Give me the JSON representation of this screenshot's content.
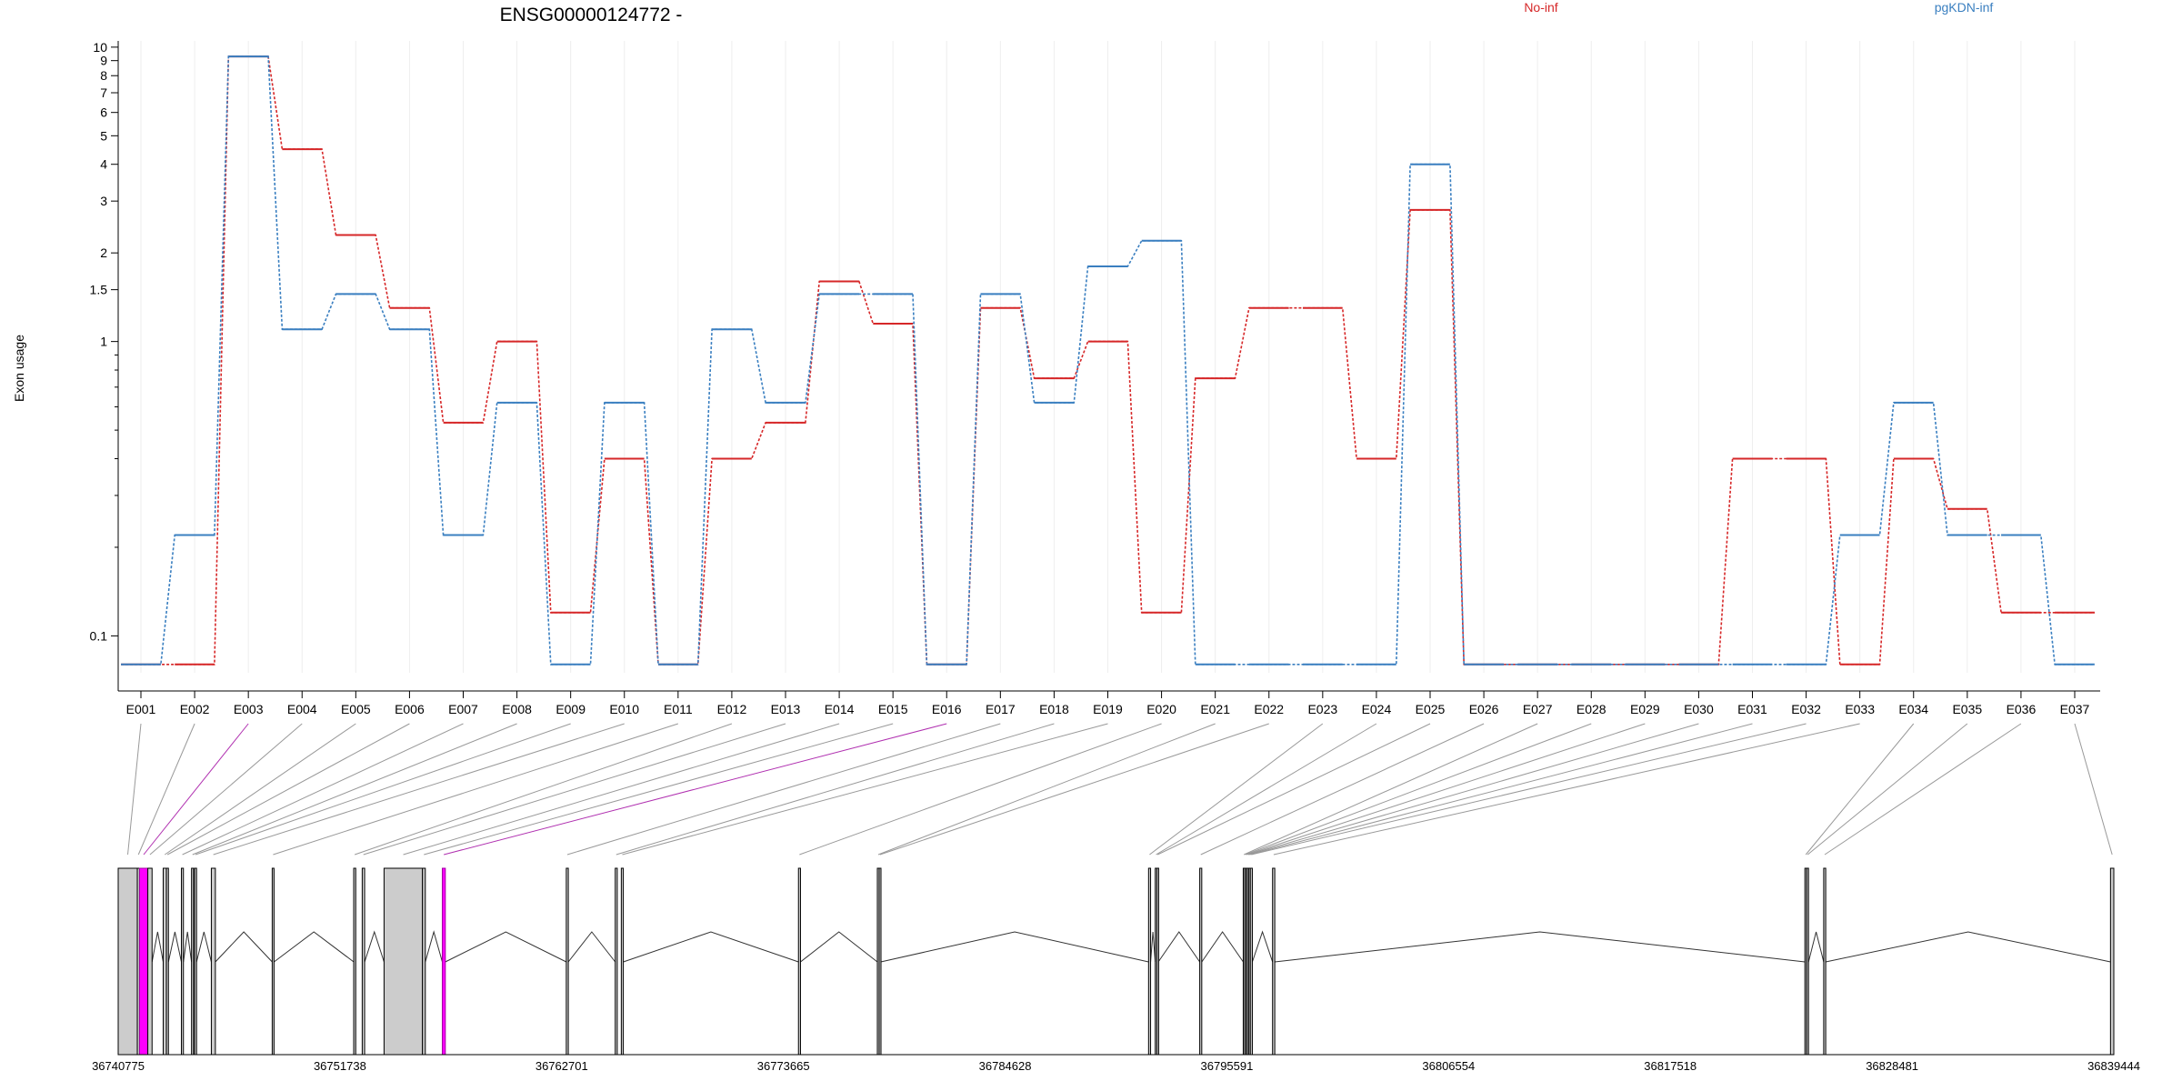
{
  "chart_data": {
    "type": "line",
    "title": "ENSG00000124772 -",
    "ylabel": "Exon usage",
    "xlabel": "",
    "y_scale": "log",
    "ylim": [
      0.065,
      10.5
    ],
    "y_ticks": [
      0.1,
      1,
      1.5,
      2,
      3,
      4,
      5,
      6,
      7,
      8,
      9,
      10
    ],
    "y_minor_ticks": [
      0.2,
      0.3,
      0.4,
      0.5,
      0.6,
      0.7,
      0.8,
      0.9
    ],
    "grid": true,
    "legend_placement": "top",
    "categories": [
      "E001",
      "E002",
      "E003",
      "E004",
      "E005",
      "E006",
      "E007",
      "E008",
      "E009",
      "E010",
      "E011",
      "E012",
      "E013",
      "E014",
      "E015",
      "E016",
      "E017",
      "E018",
      "E019",
      "E020",
      "E021",
      "E022",
      "E023",
      "E024",
      "E025",
      "E026",
      "E027",
      "E028",
      "E029",
      "E030",
      "E031",
      "E032",
      "E033",
      "E034",
      "E035",
      "E036",
      "E037"
    ],
    "series": [
      {
        "name": "No-inf",
        "color": "#d62728",
        "values": [
          0.08,
          0.08,
          9.3,
          4.5,
          2.3,
          1.3,
          0.53,
          1.0,
          0.12,
          0.4,
          0.08,
          0.4,
          0.53,
          1.6,
          1.15,
          0.08,
          1.3,
          0.75,
          1.0,
          0.12,
          0.75,
          1.3,
          1.3,
          0.4,
          2.8,
          0.08,
          0.08,
          0.08,
          0.08,
          0.08,
          0.4,
          0.4,
          0.08,
          0.4,
          0.27,
          0.12,
          0.12
        ]
      },
      {
        "name": "pgKDN-inf",
        "color": "#3a7fc0",
        "values": [
          0.08,
          0.22,
          9.3,
          1.1,
          1.45,
          1.1,
          0.22,
          0.62,
          0.08,
          0.62,
          0.08,
          1.1,
          0.62,
          1.45,
          1.45,
          0.08,
          1.45,
          0.62,
          1.8,
          2.2,
          0.08,
          0.08,
          0.08,
          0.08,
          4.0,
          0.08,
          0.08,
          0.08,
          0.08,
          0.08,
          0.08,
          0.08,
          0.22,
          0.62,
          0.22,
          0.22,
          0.08
        ]
      }
    ],
    "gene_model": {
      "start": 36740775,
      "end": 36839444,
      "axis_labels": [
        "36740775",
        "36751738",
        "36762701",
        "36773665",
        "36784628",
        "36795591",
        "36806554",
        "36817518",
        "36828481",
        "36839444"
      ],
      "axis_values": [
        36740775,
        36751738,
        36762701,
        36773665,
        36784628,
        36795591,
        36806554,
        36817518,
        36828481,
        36839444
      ],
      "exons": [
        {
          "id": "E001",
          "start": 36740775,
          "end": 36741720,
          "highlight": false
        },
        {
          "id": "E002",
          "start": 36741720,
          "end": 36741830,
          "highlight": false
        },
        {
          "id": "E003",
          "start": 36741830,
          "end": 36742240,
          "highlight": true
        },
        {
          "id": "E004",
          "start": 36742240,
          "end": 36742450,
          "highlight": false
        },
        {
          "id": "E005",
          "start": 36743000,
          "end": 36743160,
          "highlight": false
        },
        {
          "id": "E006",
          "start": 36743160,
          "end": 36743260,
          "highlight": false
        },
        {
          "id": "E007",
          "start": 36743900,
          "end": 36744000,
          "highlight": false
        },
        {
          "id": "E008",
          "start": 36744400,
          "end": 36744500,
          "highlight": false
        },
        {
          "id": "E009",
          "start": 36744550,
          "end": 36744650,
          "highlight": false
        },
        {
          "id": "E010",
          "start": 36745380,
          "end": 36745580,
          "highlight": false
        },
        {
          "id": "E011",
          "start": 36748390,
          "end": 36748480,
          "highlight": false
        },
        {
          "id": "E012",
          "start": 36752420,
          "end": 36752520,
          "highlight": false
        },
        {
          "id": "E013",
          "start": 36752840,
          "end": 36752960,
          "highlight": false
        },
        {
          "id": "E014",
          "start": 36753920,
          "end": 36755820,
          "highlight": false
        },
        {
          "id": "E015",
          "start": 36755820,
          "end": 36755960,
          "highlight": false
        },
        {
          "id": "E016",
          "start": 36756800,
          "end": 36756950,
          "highlight": true
        },
        {
          "id": "E017",
          "start": 36762930,
          "end": 36763030,
          "highlight": false
        },
        {
          "id": "E018",
          "start": 36765350,
          "end": 36765450,
          "highlight": false
        },
        {
          "id": "E019",
          "start": 36765650,
          "end": 36765750,
          "highlight": false
        },
        {
          "id": "E020",
          "start": 36774410,
          "end": 36774510,
          "highlight": false
        },
        {
          "id": "E021",
          "start": 36778310,
          "end": 36778400,
          "highlight": false
        },
        {
          "id": "E022",
          "start": 36778400,
          "end": 36778480,
          "highlight": false
        },
        {
          "id": "E023",
          "start": 36791720,
          "end": 36791820,
          "highlight": false
        },
        {
          "id": "E024",
          "start": 36792050,
          "end": 36792130,
          "highlight": false
        },
        {
          "id": "E025",
          "start": 36792130,
          "end": 36792200,
          "highlight": false
        },
        {
          "id": "E026",
          "start": 36794250,
          "end": 36794350,
          "highlight": false
        },
        {
          "id": "E027",
          "start": 36796400,
          "end": 36796470,
          "highlight": false
        },
        {
          "id": "E028",
          "start": 36796470,
          "end": 36796540,
          "highlight": false
        },
        {
          "id": "E029",
          "start": 36796540,
          "end": 36796610,
          "highlight": false
        },
        {
          "id": "E030",
          "start": 36796610,
          "end": 36796680,
          "highlight": false
        },
        {
          "id": "E031",
          "start": 36796680,
          "end": 36796750,
          "highlight": false
        },
        {
          "id": "E032",
          "start": 36796750,
          "end": 36796850,
          "highlight": false
        },
        {
          "id": "E033",
          "start": 36797850,
          "end": 36797960,
          "highlight": false
        },
        {
          "id": "E034",
          "start": 36824170,
          "end": 36824260,
          "highlight": false
        },
        {
          "id": "E035",
          "start": 36824260,
          "end": 36824350,
          "highlight": false
        },
        {
          "id": "E036",
          "start": 36825100,
          "end": 36825200,
          "highlight": false
        },
        {
          "id": "E037",
          "start": 36839280,
          "end": 36839444,
          "highlight": false
        }
      ],
      "introns": [
        [
          36740775,
          36741720
        ],
        [
          36742450,
          36743000
        ],
        [
          36743260,
          36743900
        ],
        [
          36744000,
          36744400
        ],
        [
          36744650,
          36745380
        ],
        [
          36745580,
          36748390
        ],
        [
          36748480,
          36752420
        ],
        [
          36752960,
          36753920
        ],
        [
          36755960,
          36756800
        ],
        [
          36756950,
          36762930
        ],
        [
          36763030,
          36765350
        ],
        [
          36765750,
          36774410
        ],
        [
          36774510,
          36778310
        ],
        [
          36778480,
          36791720
        ],
        [
          36791820,
          36792050
        ],
        [
          36792200,
          36794250
        ],
        [
          36794350,
          36796400
        ],
        [
          36796850,
          36797850
        ],
        [
          36797960,
          36824170
        ],
        [
          36824350,
          36825100
        ],
        [
          36825200,
          36839280
        ]
      ]
    }
  }
}
